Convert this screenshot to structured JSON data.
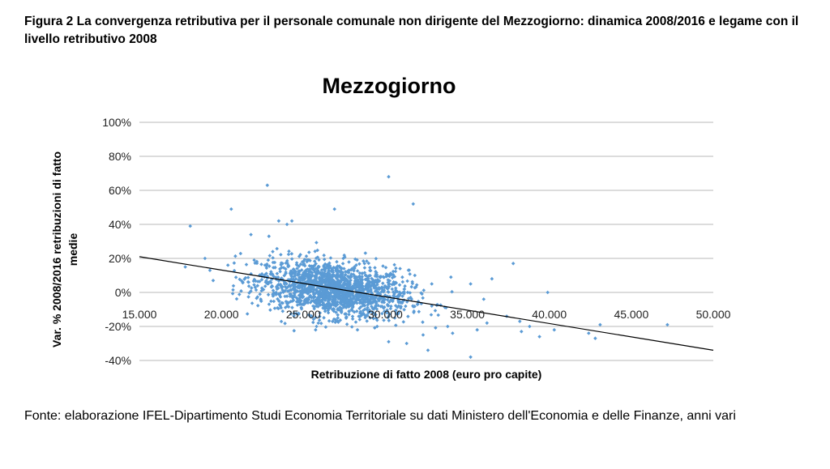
{
  "figure": {
    "caption": "Figura 2 La convergenza retributiva per il personale comunale non dirigente del Mezzogiorno: dinamica 2008/2016 e legame con il livello retributivo 2008",
    "source": "Fonte: elaborazione IFEL-Dipartimento Studi Economia Territoriale su dati Ministero dell'Economia e delle Finanze, anni vari"
  },
  "chart_data": {
    "type": "scatter",
    "title": "Mezzogiorno",
    "xlabel": "Retribuzione di fatto 2008 (euro pro capite)",
    "ylabel_lines": [
      "Var. % 2008/2016 retribuzioni di fatto",
      "medie"
    ],
    "xlim": [
      15000,
      50000
    ],
    "ylim": [
      -40,
      100
    ],
    "x_ticks": [
      15000,
      20000,
      25000,
      30000,
      35000,
      40000,
      45000,
      50000
    ],
    "x_tick_labels": [
      "15.000",
      "20.000",
      "25.000",
      "30.000",
      "35.000",
      "40.000",
      "45.000",
      "50.000"
    ],
    "y_ticks": [
      -40,
      -20,
      0,
      20,
      40,
      60,
      80,
      100
    ],
    "y_tick_labels": [
      "-40%",
      "-20%",
      "0%",
      "20%",
      "40%",
      "60%",
      "80%",
      "100%"
    ],
    "grid": "horizontal",
    "legend": "none",
    "marker_color": "#5B9BD5",
    "trendline": {
      "color": "#000000",
      "points": [
        [
          15000,
          21
        ],
        [
          50000,
          -34
        ]
      ]
    },
    "cluster": {
      "n": 1700,
      "x_mean": 26800,
      "x_sd": 2300,
      "y_mean": 2,
      "y_sd": 8,
      "slope_per_1000": -1.1
    },
    "points": [
      [
        30200,
        68
      ],
      [
        22800,
        63
      ],
      [
        31700,
        52
      ],
      [
        26900,
        49
      ],
      [
        20600,
        49
      ],
      [
        18100,
        39
      ],
      [
        23500,
        42
      ],
      [
        24300,
        42
      ],
      [
        24000,
        40
      ],
      [
        21800,
        34
      ],
      [
        22900,
        33
      ],
      [
        17800,
        15
      ],
      [
        19000,
        20
      ],
      [
        19300,
        13
      ],
      [
        19500,
        7
      ],
      [
        20400,
        16
      ],
      [
        37800,
        17
      ],
      [
        36500,
        8
      ],
      [
        39900,
        0
      ],
      [
        47200,
        -19
      ],
      [
        35200,
        -38
      ],
      [
        32600,
        -34
      ],
      [
        31300,
        -30
      ],
      [
        30200,
        -29
      ],
      [
        38300,
        -23
      ],
      [
        39400,
        -26
      ],
      [
        40300,
        -22
      ],
      [
        37400,
        -14
      ],
      [
        36200,
        -18
      ],
      [
        42400,
        -24
      ],
      [
        43100,
        -19
      ],
      [
        42800,
        -27
      ],
      [
        34100,
        -24
      ],
      [
        33800,
        -20
      ],
      [
        35600,
        -22
      ],
      [
        38800,
        -20
      ],
      [
        32300,
        -25
      ],
      [
        28300,
        -22
      ],
      [
        29500,
        -20
      ],
      [
        35200,
        5
      ],
      [
        34000,
        9
      ],
      [
        33700,
        -9
      ],
      [
        36000,
        -4
      ],
      [
        38200,
        -17
      ],
      [
        25800,
        -20
      ],
      [
        27100,
        -15
      ],
      [
        23600,
        -8
      ],
      [
        22400,
        -4
      ],
      [
        30900,
        14
      ],
      [
        31800,
        10
      ]
    ]
  }
}
